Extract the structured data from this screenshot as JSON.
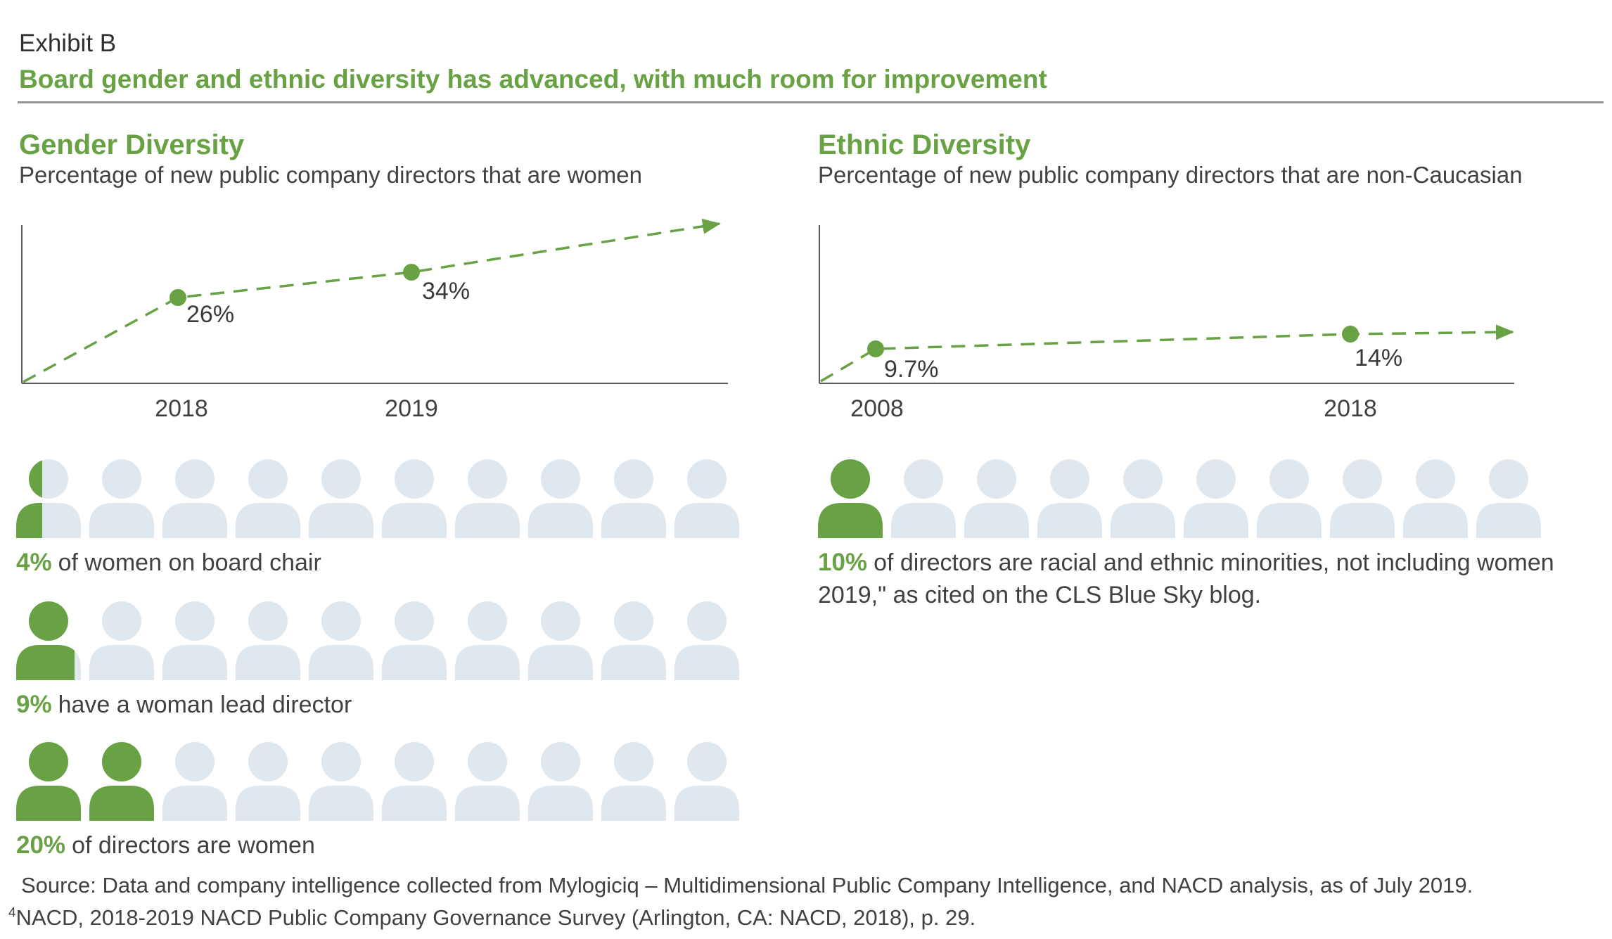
{
  "header": {
    "exhibit_label": "Exhibit B",
    "title": "Board gender and ethnic diversity has advanced, with much room for improvement"
  },
  "colors": {
    "green": "#69A244",
    "icon_light": "#DFE8EE",
    "text": "#414042",
    "axis": "#58595B",
    "rule": "#919396"
  },
  "sections": {
    "gender": {
      "heading": "Gender Diversity",
      "subtitle": "Percentage of new public company directors that are women",
      "points": [
        {
          "year": "2018",
          "label": "26%"
        },
        {
          "year": "2019",
          "label": "34%"
        }
      ]
    },
    "ethnic": {
      "heading": "Ethnic Diversity",
      "subtitle": "Percentage of new public company directors that are non-Caucasian",
      "points": [
        {
          "year": "2008",
          "label": "9.7%"
        },
        {
          "year": "2018",
          "label": "14%"
        }
      ]
    }
  },
  "stats": [
    {
      "pct": "4%",
      "text": "of women on board chair",
      "filled_units": 0.4,
      "total": 10
    },
    {
      "pct": "9%",
      "text": "have a woman lead director",
      "filled_units": 0.9,
      "total": 10
    },
    {
      "pct": "20%",
      "text": "of directors are women",
      "filled_units": 2,
      "total": 10
    },
    {
      "pct": "10%",
      "text_lines": [
        "of directors are racial and ethnic minorities, not including women",
        "2019,\" as cited on the CLS Blue Sky blog."
      ],
      "filled_units": 1,
      "total": 10
    }
  ],
  "footer": {
    "source": "Source: Data and company intelligence collected from Mylogiciq – Multidimensional Public Company Intelligence, and NACD analysis, as of July 2019.",
    "footnote_sup": "4",
    "footnote": "NACD, 2018-2019 NACD Public Company Governance Survey (Arlington, CA: NACD, 2018), p. 29."
  },
  "chart_data": [
    {
      "type": "line",
      "title": "Gender Diversity",
      "subtitle": "Percentage of new public company directors that are women",
      "x": [
        "2018",
        "2019"
      ],
      "values": [
        26,
        34
      ],
      "point_labels": [
        "26%",
        "34%"
      ],
      "line_style": "dashed",
      "marker": "circle",
      "trend_arrow": true,
      "color": "#69A244",
      "ylim": [
        0,
        45
      ],
      "grid": false,
      "legend": "none"
    },
    {
      "type": "line",
      "title": "Ethnic Diversity",
      "subtitle": "Percentage of new public company directors that are non-Caucasian",
      "x": [
        "2008",
        "2018"
      ],
      "values": [
        9.7,
        14
      ],
      "point_labels": [
        "9.7%",
        "14%"
      ],
      "line_style": "dashed",
      "marker": "circle",
      "trend_arrow": true,
      "color": "#69A244",
      "ylim": [
        0,
        45
      ],
      "grid": false,
      "legend": "none"
    },
    {
      "type": "pictograph",
      "unit_total": 10,
      "unit_shape": "person",
      "filled_color": "#69A244",
      "empty_color": "#DFE8EE",
      "rows": [
        {
          "label": "4% of women on board chair",
          "value_pct": 4,
          "filled_units": 0.4
        },
        {
          "label": "9% have a woman lead director",
          "value_pct": 9,
          "filled_units": 0.9
        },
        {
          "label": "20% of directors are women",
          "value_pct": 20,
          "filled_units": 2
        },
        {
          "label": "10% of directors are racial and ethnic minorities, not including women 2019,\" as cited on the CLS Blue Sky blog.",
          "value_pct": 10,
          "filled_units": 1
        }
      ]
    }
  ]
}
